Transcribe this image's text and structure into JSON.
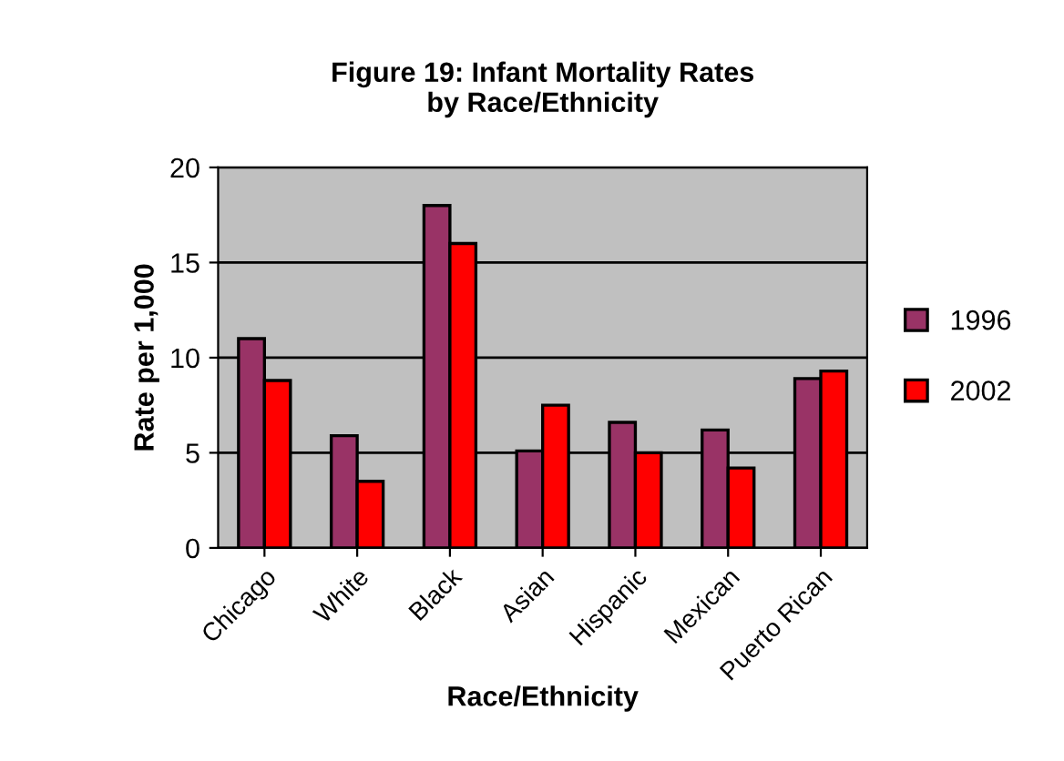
{
  "chart_data": {
    "type": "bar",
    "title": "Figure 19: Infant Mortality Rates\nby Race/Ethnicity",
    "xlabel": "Race/Ethnicity",
    "ylabel": "Rate per 1,000",
    "categories": [
      "Chicago",
      "White",
      "Black",
      "Asian",
      "Hispanic",
      "Mexican",
      "Puerto Rican"
    ],
    "series": [
      {
        "name": "1996",
        "color": "#993366",
        "values": [
          11.0,
          5.9,
          18.0,
          5.1,
          6.6,
          6.2,
          8.9
        ]
      },
      {
        "name": "2002",
        "color": "#ff0000",
        "values": [
          8.8,
          3.5,
          16.0,
          7.5,
          5.0,
          4.2,
          9.3
        ]
      }
    ],
    "ylim": [
      0,
      20
    ],
    "yticks": [
      0,
      5,
      10,
      15,
      20
    ],
    "grid": "y",
    "legend": "right"
  }
}
